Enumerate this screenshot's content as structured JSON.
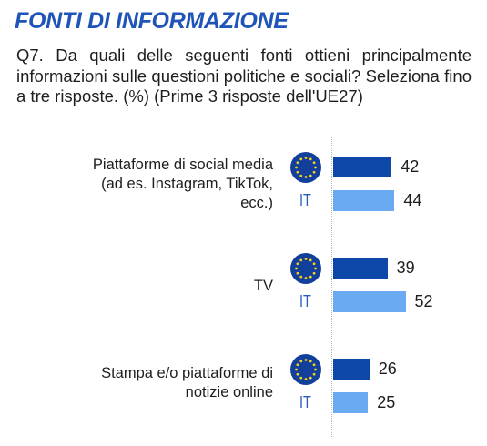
{
  "header": {
    "title": "FONTI DI INFORMAZIONE",
    "question": "Q7. Da quali delle seguenti fonti ottieni principalmente informazioni sulle questioni politiche e sociali? Seleziona fino a tre risposte. (%) (Prime 3 risposte dell'UE27)"
  },
  "chart_data": {
    "type": "bar",
    "orientation": "horizontal",
    "title": "FONTI DI INFORMAZIONE",
    "categories": [
      "Piattaforme di social media (ad es. Instagram, TikTok, ecc.)",
      "TV",
      "Stampa e/o piattaforme di notizie online"
    ],
    "series": [
      {
        "name": "UE27",
        "color": "#0d47a8",
        "values": [
          42,
          39,
          26
        ]
      },
      {
        "name": "IT",
        "color": "#6aaaf2",
        "values": [
          44,
          52,
          25
        ]
      }
    ],
    "it_label": "IT",
    "legend": "none",
    "grid": false,
    "xlim": [
      0,
      100
    ]
  },
  "icons": {
    "eu": "eu-flag-icon"
  }
}
